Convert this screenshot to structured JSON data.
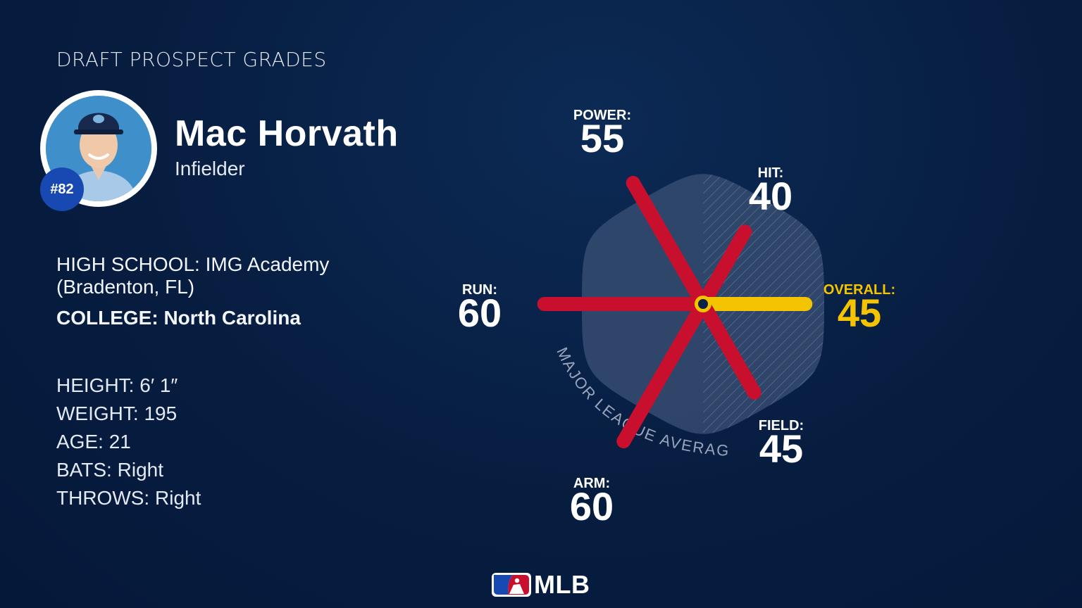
{
  "header": {
    "title": "DRAFT PROSPECT GRADES"
  },
  "player": {
    "name": "Mac Horvath",
    "position": "Infielder",
    "number": "#82",
    "high_school_label": "HIGH SCHOOL:",
    "high_school": "IMG Academy (Bradenton, FL)",
    "college_label": "COLLEGE:",
    "college": "North Carolina",
    "stats": [
      {
        "label": "HEIGHT:",
        "value": "6′ 1″"
      },
      {
        "label": "WEIGHT:",
        "value": "195"
      },
      {
        "label": "AGE:",
        "value": "21"
      },
      {
        "label": "BATS:",
        "value": "Right"
      },
      {
        "label": "THROWS:",
        "value": "Right"
      }
    ]
  },
  "chart_data": {
    "type": "radar",
    "baseline_label": "MAJOR LEAGUE AVERAGE",
    "baseline_value": 50,
    "scale_range": [
      20,
      80
    ],
    "axes": [
      {
        "label": "POWER:",
        "value": 55
      },
      {
        "label": "HIT:",
        "value": 40
      },
      {
        "label": "OVERALL:",
        "value": 45
      },
      {
        "label": "FIELD:",
        "value": 45
      },
      {
        "label": "ARM:",
        "value": 60
      },
      {
        "label": "RUN:",
        "value": 60
      }
    ],
    "colors": {
      "spokes": "#c8102e",
      "overall": "#f5c400",
      "baseline_fill": "#3c5176",
      "overall_text": "#f5c400"
    }
  },
  "footer": {
    "logo_text": "MLB"
  }
}
